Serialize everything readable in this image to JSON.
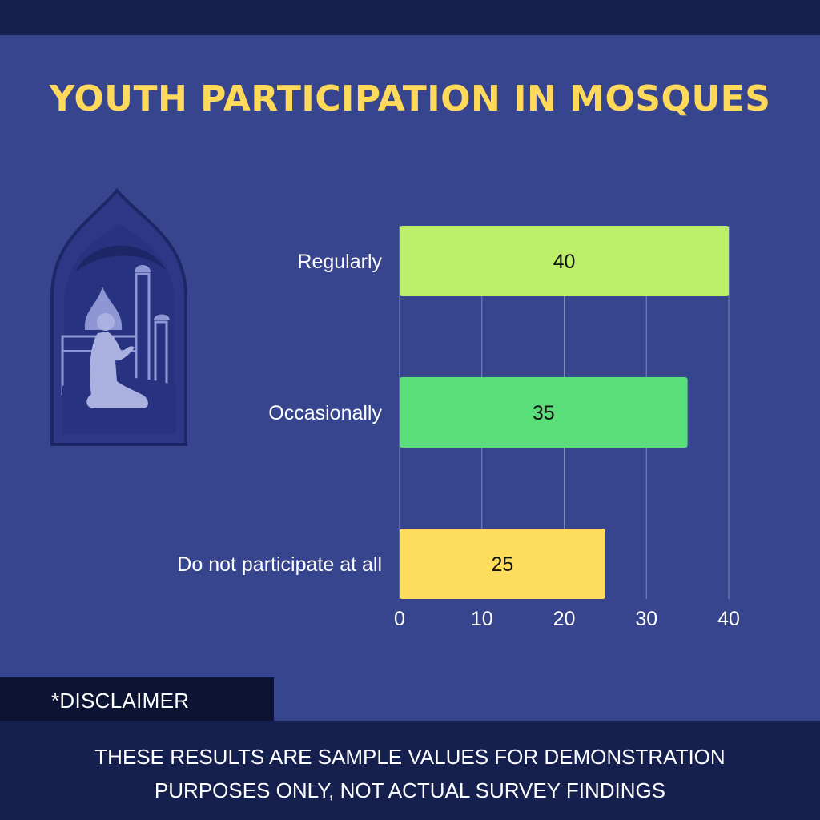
{
  "colors": {
    "background": "#37458e",
    "dark_band": "#16204f",
    "disclaimer_tab": "#0c1333",
    "title": "#ffd95a",
    "label_text": "#ffffff",
    "value_text": "#111111",
    "gridline": "#7f8abf",
    "illustration_light": "#aab0e0",
    "illustration_mid": "#2c3886",
    "illustration_dark": "#1d2768"
  },
  "chart_data": {
    "type": "bar",
    "orientation": "horizontal",
    "title": "YOUTH PARTICIPATION IN MOSQUES",
    "categories": [
      "Regularly",
      "Occasionally",
      "Do not participate at all"
    ],
    "values": [
      40,
      35,
      25
    ],
    "bar_colors": [
      "#bdf06a",
      "#5ade7a",
      "#ffdd5c"
    ],
    "xlim": [
      0,
      40
    ],
    "x_ticks": [
      0,
      10,
      20,
      30,
      40
    ],
    "grid": true,
    "data_labels": true
  },
  "disclaimer": {
    "label": "*DISCLAIMER",
    "line1": "THESE RESULTS ARE SAMPLE VALUES FOR DEMONSTRATION",
    "line2": "PURPOSES ONLY, NOT ACTUAL SURVEY FINDINGS"
  }
}
